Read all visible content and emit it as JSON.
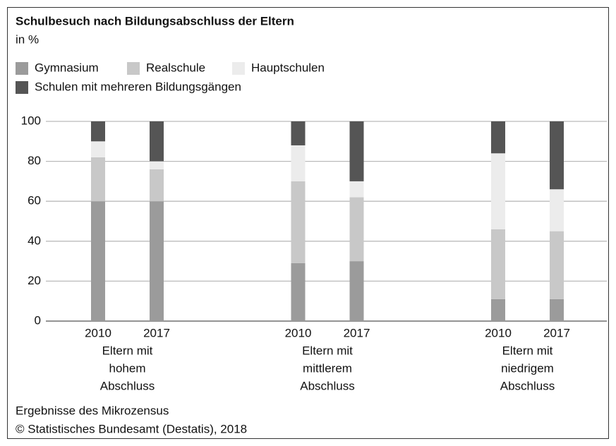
{
  "chart_data": {
    "type": "stacked_bar",
    "title": "Schulbesuch nach Bildungsabschluss der Eltern",
    "subtitle": "in %",
    "categories": [
      "2010",
      "2017",
      "2010",
      "2017",
      "2010",
      "2017"
    ],
    "groups": [
      [
        "Eltern mit",
        "hohem",
        "Abschluss"
      ],
      [
        "Eltern mit",
        "mittlerem",
        "Abschluss"
      ],
      [
        "Eltern mit",
        "niedrigem",
        "Abschluss"
      ]
    ],
    "series": [
      {
        "name": "Gymnasium",
        "color": "#9b9b9b",
        "values": [
          60,
          60,
          29,
          30,
          11,
          11
        ]
      },
      {
        "name": "Realschule",
        "color": "#c8c8c8",
        "values": [
          22,
          16,
          41,
          32,
          35,
          34
        ]
      },
      {
        "name": "Hauptschulen",
        "color": "#ececec",
        "values": [
          8,
          4,
          18,
          8,
          38,
          21
        ]
      },
      {
        "name": "Schulen mit mehreren Bildungsgängen",
        "color": "#555555",
        "values": [
          10,
          20,
          12,
          30,
          16,
          34
        ]
      }
    ],
    "ylim": [
      0,
      100
    ],
    "yticks": [
      0,
      20,
      40,
      60,
      80,
      100
    ],
    "grid": true,
    "notes": [
      "Ergebnisse des Mikrozensus",
      "© Statistisches Bundesamt (Destatis), 2018"
    ]
  }
}
